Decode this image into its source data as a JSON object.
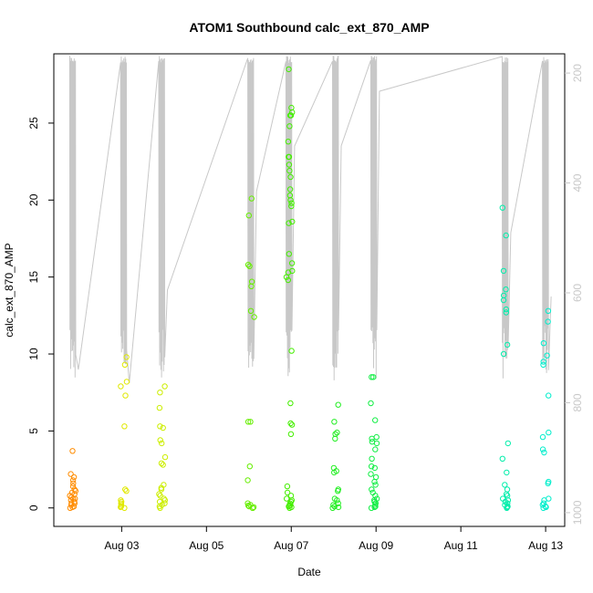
{
  "chart_data": {
    "type": "scatter",
    "title": "ATOM1 Southbound calc_ext_870_AMP",
    "xlabel": "Date",
    "ylabel": "calc_ext_870_AMP",
    "x_tick_labels": [
      "Aug 03",
      "Aug 05",
      "Aug 07",
      "Aug 09",
      "Aug 11",
      "Aug 13"
    ],
    "x_tick_days": [
      3,
      5,
      7,
      9,
      11,
      13
    ],
    "xlim_days": [
      1.4,
      13.45
    ],
    "ylim": [
      -1.2,
      29.5
    ],
    "y_ticks": [
      0,
      5,
      10,
      15,
      20,
      25
    ],
    "right_axis": {
      "ticks": [
        200,
        400,
        600,
        800,
        1000
      ],
      "range_bottom_to_top": [
        1025,
        165
      ],
      "color": "#c8c8c8"
    },
    "grid": false,
    "legend": "none",
    "point_style": "open-circle",
    "line_color": "#c8c8c8",
    "groups": [
      {
        "day": 1.85,
        "color": "#ff8c00",
        "values": [
          3.7,
          2.2,
          2.0,
          1.8,
          1.6,
          1.4,
          1.2,
          1.0,
          0.9,
          0.8,
          0.7,
          0.6,
          0.5,
          0.4,
          0.3,
          0.2,
          0.1,
          0.05,
          0.0,
          0.3,
          0.6,
          1.1
        ]
      },
      {
        "day": 3.05,
        "color": "#e0e800",
        "values": [
          9.8,
          9.3,
          8.2,
          7.9,
          7.3,
          5.3,
          1.2,
          1.1,
          0.5,
          0.4,
          0.3,
          0.2,
          0.1,
          0.05,
          0.0
        ]
      },
      {
        "day": 3.95,
        "color": "#ccee00",
        "values": [
          7.9,
          7.5,
          6.5,
          5.3,
          5.2,
          4.4,
          4.2,
          3.3,
          2.9,
          2.8,
          1.5,
          1.3,
          1.2,
          0.9,
          0.8,
          0.6,
          0.5,
          0.4,
          0.3,
          0.2,
          0.1,
          0.0
        ]
      },
      {
        "day": 6.05,
        "color": "#66ee00",
        "values": [
          20.1,
          19.0,
          15.8,
          15.7,
          14.7,
          14.4,
          12.8,
          12.4,
          5.6,
          5.6,
          2.7,
          1.8,
          0.3,
          0.2,
          0.15,
          0.1,
          0.05,
          0.0,
          0.0
        ]
      },
      {
        "day": 6.95,
        "color": "#44ee00",
        "values": [
          28.5,
          26.0,
          25.7,
          25.5,
          25.5,
          24.8,
          23.8,
          22.8,
          22.8,
          22.3,
          21.9,
          21.5,
          20.7,
          20.3,
          20.0,
          19.8,
          19.6,
          18.6,
          18.5,
          16.5,
          15.9,
          15.4,
          15.3,
          15.0,
          14.8,
          10.2,
          6.8,
          5.5,
          5.4,
          4.8,
          1.4,
          1.0,
          0.8,
          0.6,
          0.5,
          0.4,
          0.3,
          0.2,
          0.15,
          0.1,
          0.05,
          0.0
        ]
      },
      {
        "day": 8.05,
        "color": "#22ee22",
        "values": [
          6.7,
          5.6,
          4.9,
          4.8,
          4.5,
          2.6,
          2.4,
          2.3,
          1.2,
          1.1,
          0.6,
          0.5,
          0.3,
          0.2,
          0.1,
          0.05,
          0.0
        ]
      },
      {
        "day": 8.95,
        "color": "#11ee44",
        "values": [
          8.5,
          8.5,
          6.8,
          5.7,
          4.6,
          4.5,
          4.3,
          4.2,
          3.8,
          3.2,
          2.7,
          2.6,
          2.2,
          2.0,
          1.7,
          1.5,
          1.2,
          1.0,
          0.8,
          0.6,
          0.5,
          0.4,
          0.3,
          0.2,
          0.1,
          0.05,
          0.0
        ]
      },
      {
        "day": 12.05,
        "color": "#00eeaa",
        "values": [
          19.5,
          17.7,
          15.4,
          14.2,
          13.8,
          13.5,
          12.9,
          12.7,
          10.6,
          10.0,
          4.2,
          3.2,
          2.3,
          1.5,
          1.2,
          0.9,
          0.8,
          0.6,
          0.5,
          0.4,
          0.3,
          0.2,
          0.1,
          0.05,
          0.0
        ]
      },
      {
        "day": 13.0,
        "color": "#00eecc",
        "values": [
          12.8,
          12.1,
          10.7,
          9.9,
          9.5,
          9.3,
          7.3,
          4.9,
          4.6,
          3.8,
          3.6,
          1.7,
          1.6,
          0.6,
          0.5,
          0.3,
          0.2,
          0.1,
          0.05,
          0.0
        ]
      }
    ]
  }
}
